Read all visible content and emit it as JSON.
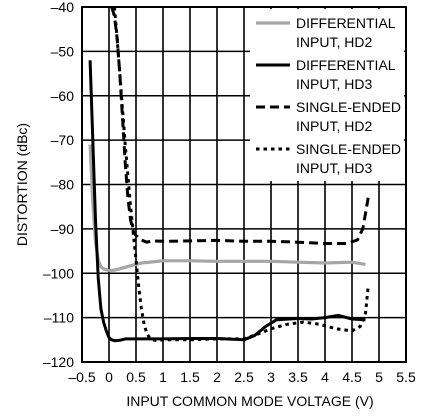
{
  "chart_data": {
    "type": "line",
    "xlabel": "INPUT COMMON MODE VOLTAGE (V)",
    "ylabel": "DISTORTION (dBc)",
    "xlim": [
      -0.5,
      5.5
    ],
    "ylim": [
      -120,
      -40
    ],
    "xticks": [
      -0.5,
      0,
      0.5,
      1,
      1.5,
      2,
      2.5,
      3,
      3.5,
      4,
      4.5,
      5,
      5.5
    ],
    "xtick_labels": [
      "–0.5",
      "0",
      "0.5",
      "1",
      "1.5",
      "2",
      "2.5",
      "3",
      "3.5",
      "4",
      "4.5",
      "5",
      "5.5"
    ],
    "yticks": [
      -40,
      -50,
      -60,
      -70,
      -80,
      -90,
      -100,
      -110,
      -120
    ],
    "ytick_labels": [
      "–40",
      "–50",
      "–60",
      "–70",
      "–80",
      "–90",
      "–100",
      "–110",
      "–120"
    ],
    "grid": true,
    "legend_position": "top-right",
    "series": [
      {
        "name": "DIFFERENTIAL INPUT, HD2",
        "legend_lines": [
          "DIFFERENTIAL",
          "INPUT, HD2"
        ],
        "color": "#a6a6a6",
        "style": "solid",
        "x": [
          -0.35,
          -0.3,
          -0.25,
          -0.2,
          -0.15,
          -0.1,
          0,
          0.1,
          0.2,
          0.4,
          0.6,
          1.0,
          1.5,
          2.0,
          2.5,
          3.0,
          3.5,
          4.0,
          4.5,
          4.75
        ],
        "y": [
          -71,
          -84,
          -93,
          -97,
          -98.5,
          -99,
          -99.4,
          -99.3,
          -99,
          -98.3,
          -97.7,
          -97.2,
          -97.2,
          -97.3,
          -97.3,
          -97.3,
          -97.5,
          -97.7,
          -97.5,
          -98
        ]
      },
      {
        "name": "DIFFERENTIAL INPUT, HD3",
        "legend_lines": [
          "DIFFERENTIAL",
          "INPUT, HD3"
        ],
        "color": "#000000",
        "style": "solid",
        "x": [
          -0.35,
          -0.3,
          -0.25,
          -0.2,
          -0.15,
          -0.1,
          -0.05,
          0,
          0.05,
          0.1,
          0.2,
          0.3,
          0.5,
          1.0,
          1.5,
          2.0,
          2.5,
          2.7,
          2.9,
          3.1,
          3.5,
          3.75,
          4.0,
          4.25,
          4.5,
          4.75
        ],
        "y": [
          -52,
          -70,
          -88,
          -101,
          -108,
          -111,
          -113,
          -114.5,
          -115,
          -115.2,
          -115.1,
          -114.8,
          -114.8,
          -114.8,
          -114.7,
          -114.7,
          -115,
          -114,
          -112,
          -110.5,
          -110.2,
          -110.3,
          -110,
          -109.5,
          -110.3,
          -110.5
        ]
      },
      {
        "name": "SINGLE-ENDED INPUT, HD2",
        "legend_lines": [
          "SINGLE-ENDED",
          "INPUT, HD2"
        ],
        "color": "#000000",
        "style": "dash",
        "x": [
          0.05,
          0.1,
          0.15,
          0.2,
          0.25,
          0.3,
          0.35,
          0.4,
          0.45,
          0.5,
          0.6,
          0.7,
          0.8,
          1.0,
          1.5,
          2.0,
          2.5,
          3.0,
          3.5,
          4.0,
          4.4,
          4.6,
          4.7,
          4.8
        ],
        "y": [
          -40,
          -42,
          -47,
          -55,
          -65,
          -75,
          -83,
          -88,
          -90.5,
          -91.5,
          -92.5,
          -93,
          -92.7,
          -92.8,
          -92.7,
          -92.6,
          -92.8,
          -92.8,
          -93,
          -93.3,
          -93.3,
          -92.5,
          -90,
          -83
        ]
      },
      {
        "name": "SINGLE-ENDED INPUT, HD3",
        "legend_lines": [
          "SINGLE-ENDED",
          "INPUT, HD3"
        ],
        "color": "#000000",
        "style": "dot",
        "x": [
          0.1,
          0.15,
          0.2,
          0.25,
          0.3,
          0.35,
          0.4,
          0.45,
          0.5,
          0.55,
          0.6,
          0.65,
          0.7,
          0.75,
          0.8,
          0.9,
          1.0,
          1.5,
          2.0,
          2.5,
          2.8,
          3.0,
          3.3,
          3.6,
          3.9,
          4.2,
          4.5,
          4.65,
          4.75,
          4.8
        ],
        "y": [
          -40,
          -47,
          -55,
          -63,
          -71,
          -78,
          -85,
          -91,
          -97,
          -103,
          -108,
          -111.5,
          -113.5,
          -114.5,
          -115,
          -115.2,
          -115,
          -115,
          -114.8,
          -114.8,
          -113.5,
          -112.5,
          -111.5,
          -111,
          -111.5,
          -112.5,
          -113,
          -112,
          -109,
          -103
        ]
      }
    ]
  }
}
